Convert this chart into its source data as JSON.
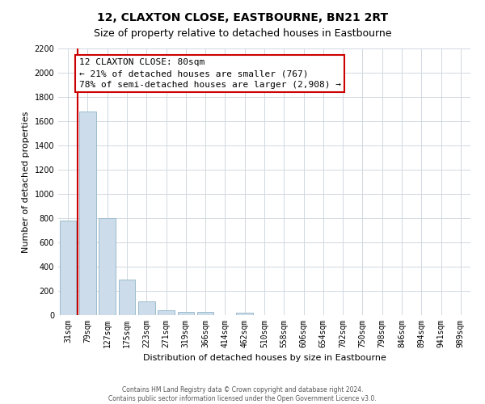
{
  "title": "12, CLAXTON CLOSE, EASTBOURNE, BN21 2RT",
  "subtitle": "Size of property relative to detached houses in Eastbourne",
  "xlabel": "Distribution of detached houses by size in Eastbourne",
  "ylabel": "Number of detached properties",
  "bar_labels": [
    "31sqm",
    "79sqm",
    "127sqm",
    "175sqm",
    "223sqm",
    "271sqm",
    "319sqm",
    "366sqm",
    "414sqm",
    "462sqm",
    "510sqm",
    "558sqm",
    "606sqm",
    "654sqm",
    "702sqm",
    "750sqm",
    "798sqm",
    "846sqm",
    "894sqm",
    "941sqm",
    "989sqm"
  ],
  "bar_values": [
    780,
    1680,
    800,
    295,
    115,
    42,
    28,
    28,
    0,
    22,
    0,
    0,
    0,
    0,
    0,
    0,
    0,
    0,
    0,
    0,
    0
  ],
  "bar_color": "#cddcea",
  "bar_edge_color": "#9bbccc",
  "property_line_label": "12 CLAXTON CLOSE: 80sqm",
  "annotation_line1": "← 21% of detached houses are smaller (767)",
  "annotation_line2": "78% of semi-detached houses are larger (2,908) →",
  "annotation_box_facecolor": "#ffffff",
  "annotation_box_edgecolor": "#cc0000",
  "vline_color": "#cc0000",
  "ylim": [
    0,
    2200
  ],
  "yticks": [
    0,
    200,
    400,
    600,
    800,
    1000,
    1200,
    1400,
    1600,
    1800,
    2000,
    2200
  ],
  "footer_line1": "Contains HM Land Registry data © Crown copyright and database right 2024.",
  "footer_line2": "Contains public sector information licensed under the Open Government Licence v3.0.",
  "bg_color": "#ffffff",
  "plot_bg_color": "#ffffff",
  "grid_color": "#d0d8e0",
  "title_fontsize": 10,
  "subtitle_fontsize": 9,
  "axis_label_fontsize": 8,
  "tick_fontsize": 7,
  "annotation_fontsize": 8
}
